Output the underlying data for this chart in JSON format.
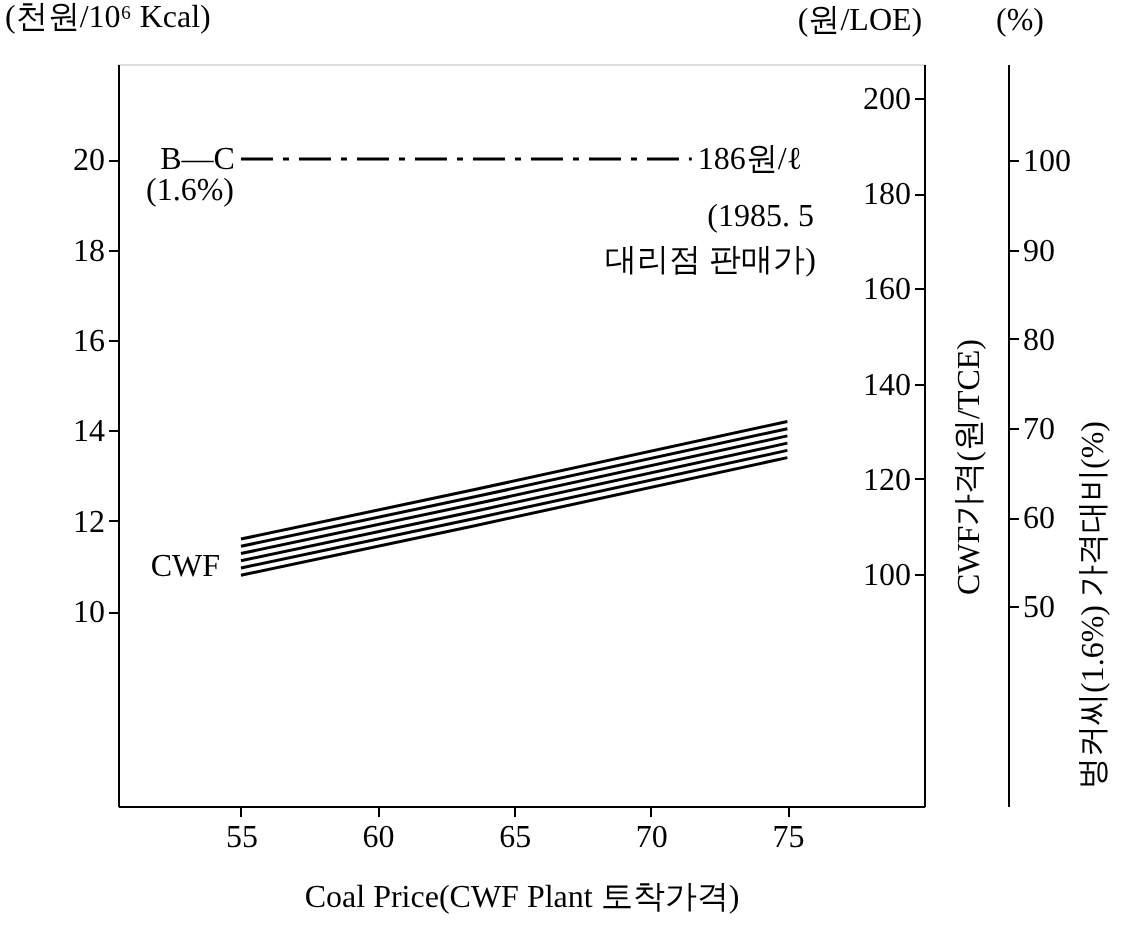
{
  "chart_data": {
    "type": "line",
    "ylabel": "(천원/10⁶ Kcal)",
    "xlabel": "Coal Price(CWF Plant 토착가격)",
    "y2label": "CWF가격(원/TCE)",
    "y3label": "벙커씨(1.6%) 가격대비(%)",
    "x": [
      55,
      63.6,
      75
    ],
    "series": [
      {
        "color": "#000000",
        "line_style": "solid",
        "values": [
          10.8,
          11.9,
          13.4
        ]
      },
      {
        "color": "#000000",
        "line_style": "solid",
        "values": [
          10.96,
          12.06,
          13.56
        ]
      },
      {
        "color": "#000000",
        "line_style": "solid",
        "values": [
          11.12,
          12.22,
          13.72
        ]
      },
      {
        "color": "#000000",
        "line_style": "solid",
        "values": [
          11.28,
          12.38,
          13.88
        ]
      },
      {
        "color": "#000000",
        "line_style": "solid",
        "values": [
          11.44,
          12.54,
          14.04
        ]
      },
      {
        "color": "#000000",
        "line_style": "solid",
        "values": [
          11.6,
          12.7,
          14.2
        ]
      },
      {
        "color": "#000000",
        "line_style": "dashed",
        "x": [
          55,
          71.5
        ],
        "values": [
          20,
          20
        ]
      }
    ],
    "annotations": [
      {
        "text": "B—C",
        "x": 55,
        "y": 20
      },
      "(1.6%)",
      {
        "text": "186원/ℓ",
        "x": 71.5,
        "y": 20
      },
      "(1985.  5",
      "대리점 판매가)",
      "CWF",
      "(원/LOE)",
      "(%)"
    ],
    "xlim": [
      50.5,
      80
    ],
    "xticks": [
      55,
      60,
      65,
      70,
      75
    ],
    "ylim": [
      5.7,
      22.1
    ],
    "yticks": [
      10,
      12,
      14,
      16,
      18,
      20
    ],
    "y2lim": [
      51.3,
      207.1
    ],
    "y2ticks": [
      100,
      120,
      140,
      160,
      180,
      200
    ],
    "y3lim": [
      27.6,
      110.8
    ],
    "y3ticks": [
      50,
      60,
      70,
      80,
      90,
      100
    ],
    "grid": false,
    "legend": false
  }
}
